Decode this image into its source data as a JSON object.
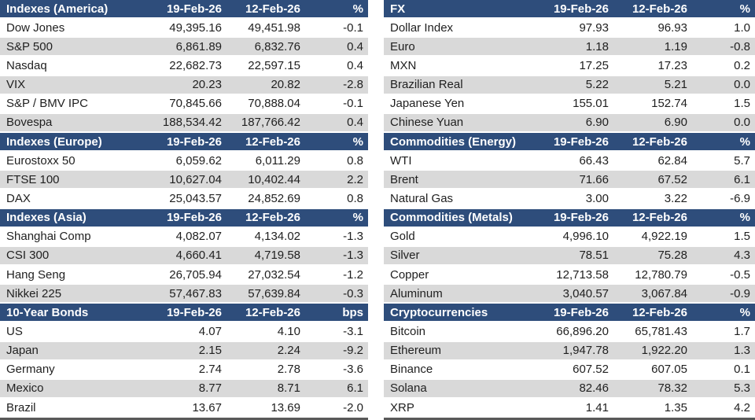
{
  "colors": {
    "header_bg": "#2E4D7B",
    "stripe_bg": "#D9D9D9",
    "row_bg": "#FFFFFF",
    "bottom_border": "#595959",
    "header_text": "#FFFFFF",
    "body_text": "#1F1F1F"
  },
  "layout_hint": {
    "left_panel": [
      0,
      1,
      2,
      3
    ],
    "right_panel": [
      4,
      5,
      6,
      7
    ]
  },
  "chart_data": [
    {
      "type": "table",
      "title": "Indexes (America)",
      "columns": [
        "19-Feb-26",
        "12-Feb-26",
        "%"
      ],
      "rows": [
        [
          "Dow Jones",
          "49,395.16",
          "49,451.98",
          "-0.1"
        ],
        [
          "S&P 500",
          "6,861.89",
          "6,832.76",
          "0.4"
        ],
        [
          "Nasdaq",
          "22,682.73",
          "22,597.15",
          "0.4"
        ],
        [
          "VIX",
          "20.23",
          "20.82",
          "-2.8"
        ],
        [
          "S&P / BMV IPC",
          "70,845.66",
          "70,888.04",
          "-0.1"
        ],
        [
          "Bovespa",
          "188,534.42",
          "187,766.42",
          "0.4"
        ]
      ]
    },
    {
      "type": "table",
      "title": "Indexes (Europe)",
      "columns": [
        "19-Feb-26",
        "12-Feb-26",
        "%"
      ],
      "rows": [
        [
          "Eurostoxx 50",
          "6,059.62",
          "6,011.29",
          "0.8"
        ],
        [
          "FTSE 100",
          "10,627.04",
          "10,402.44",
          "2.2"
        ],
        [
          "DAX",
          "25,043.57",
          "24,852.69",
          "0.8"
        ]
      ]
    },
    {
      "type": "table",
      "title": "Indexes (Asia)",
      "columns": [
        "19-Feb-26",
        "12-Feb-26",
        "%"
      ],
      "rows": [
        [
          "Shanghai Comp",
          "4,082.07",
          "4,134.02",
          "-1.3"
        ],
        [
          "CSI 300",
          "4,660.41",
          "4,719.58",
          "-1.3"
        ],
        [
          "Hang Seng",
          "26,705.94",
          "27,032.54",
          "-1.2"
        ],
        [
          "Nikkei 225",
          "57,467.83",
          "57,639.84",
          "-0.3"
        ]
      ]
    },
    {
      "type": "table",
      "title": "10-Year Bonds",
      "columns": [
        "19-Feb-26",
        "12-Feb-26",
        "bps"
      ],
      "rows": [
        [
          "US",
          "4.07",
          "4.10",
          "-3.1"
        ],
        [
          "Japan",
          "2.15",
          "2.24",
          "-9.2"
        ],
        [
          "Germany",
          "2.74",
          "2.78",
          "-3.6"
        ],
        [
          "Mexico",
          "8.77",
          "8.71",
          "6.1"
        ],
        [
          "Brazil",
          "13.67",
          "13.69",
          "-2.0"
        ]
      ]
    },
    {
      "type": "table",
      "title": "FX",
      "columns": [
        "19-Feb-26",
        "12-Feb-26",
        "%"
      ],
      "rows": [
        [
          "Dollar Index",
          "97.93",
          "96.93",
          "1.0"
        ],
        [
          "Euro",
          "1.18",
          "1.19",
          "-0.8"
        ],
        [
          "MXN",
          "17.25",
          "17.23",
          "0.2"
        ],
        [
          "Brazilian Real",
          "5.22",
          "5.21",
          "0.0"
        ],
        [
          "Japanese Yen",
          "155.01",
          "152.74",
          "1.5"
        ],
        [
          "Chinese Yuan",
          "6.90",
          "6.90",
          "0.0"
        ]
      ]
    },
    {
      "type": "table",
      "title": "Commodities (Energy)",
      "columns": [
        "19-Feb-26",
        "12-Feb-26",
        "%"
      ],
      "rows": [
        [
          "WTI",
          "66.43",
          "62.84",
          "5.7"
        ],
        [
          "Brent",
          "71.66",
          "67.52",
          "6.1"
        ],
        [
          "Natural Gas",
          "3.00",
          "3.22",
          "-6.9"
        ]
      ]
    },
    {
      "type": "table",
      "title": "Commodities (Metals)",
      "columns": [
        "19-Feb-26",
        "12-Feb-26",
        "%"
      ],
      "rows": [
        [
          "Gold",
          "4,996.10",
          "4,922.19",
          "1.5"
        ],
        [
          "Silver",
          "78.51",
          "75.28",
          "4.3"
        ],
        [
          "Copper",
          "12,713.58",
          "12,780.79",
          "-0.5"
        ],
        [
          "Aluminum",
          "3,040.57",
          "3,067.84",
          "-0.9"
        ]
      ]
    },
    {
      "type": "table",
      "title": "Cryptocurrencies",
      "columns": [
        "19-Feb-26",
        "12-Feb-26",
        "%"
      ],
      "rows": [
        [
          "Bitcoin",
          "66,896.20",
          "65,781.43",
          "1.7"
        ],
        [
          "Ethereum",
          "1,947.78",
          "1,922.20",
          "1.3"
        ],
        [
          "Binance",
          "607.52",
          "607.05",
          "0.1"
        ],
        [
          "Solana",
          "82.46",
          "78.32",
          "5.3"
        ],
        [
          "XRP",
          "1.41",
          "1.35",
          "4.2"
        ]
      ]
    }
  ]
}
